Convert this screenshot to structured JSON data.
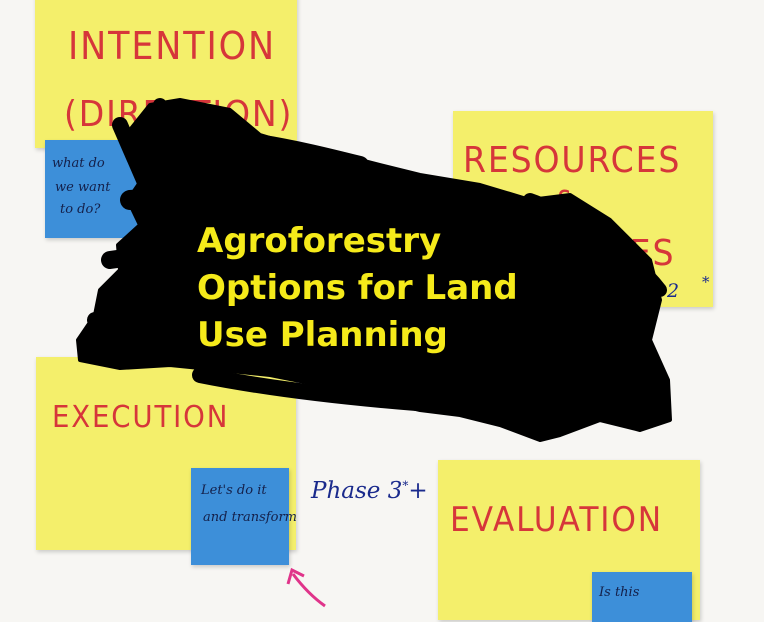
{
  "notes": {
    "intention": {
      "label_line1": "INTENTION",
      "label_line2": "(DIRECTION)",
      "sub_line1": "what do",
      "sub_line2": "we want",
      "sub_line3": "to do?"
    },
    "resources": {
      "label_line1": "RESOURCES",
      "label_line2": "&",
      "label_line3": "TIES",
      "phase": "se 2",
      "phase_mark": "*"
    },
    "execution": {
      "label": "EXECUTION",
      "sub_line1": "Let's do it",
      "sub_line2": "and transform"
    },
    "evaluation": {
      "label": "EVALUATION",
      "sub_line1": "Is this"
    }
  },
  "phase3": {
    "text": "Phase 3",
    "sup": "*",
    "plus": "+"
  },
  "overlay_title": {
    "line1": "Agroforestry",
    "line2": "Options for Land",
    "line3": "Use Planning"
  },
  "colors": {
    "sticky_yellow": "#f4ef6b",
    "sticky_blue": "#3d8fd9",
    "marker_red": "#d6363a",
    "title_yellow": "#f5ea1a",
    "scribble": "#000000"
  }
}
